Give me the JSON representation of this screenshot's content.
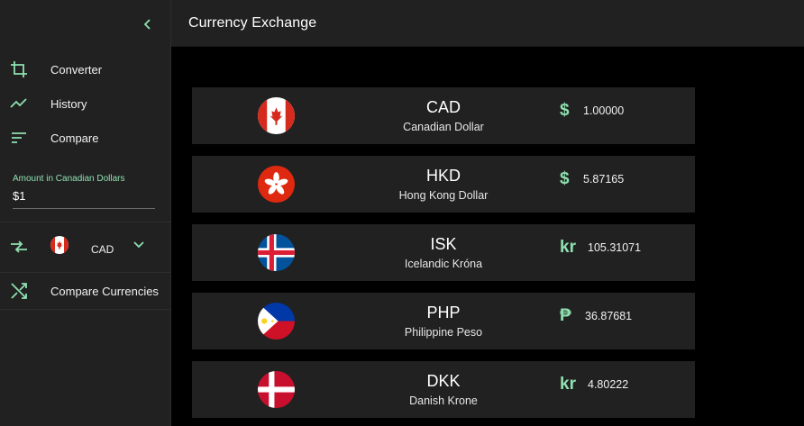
{
  "app": {
    "title": "Currency Exchange"
  },
  "sidebar": {
    "nav": [
      {
        "label": "Converter",
        "icon": "crop-icon"
      },
      {
        "label": "History",
        "icon": "trend-icon"
      },
      {
        "label": "Compare",
        "icon": "sort-icon"
      }
    ],
    "amount_label": "Amount in Canadian Dollars",
    "amount_value": "$1",
    "base_currency": {
      "code": "CAD",
      "flag": "canada-flag"
    },
    "compare_label": "Compare Currencies"
  },
  "rates": [
    {
      "code": "CAD",
      "name": "Canadian Dollar",
      "symbol": "$",
      "value": "1.00000",
      "flag": "canada-flag"
    },
    {
      "code": "HKD",
      "name": "Hong Kong Dollar",
      "symbol": "$",
      "value": "5.87165",
      "flag": "hong-kong-flag"
    },
    {
      "code": "ISK",
      "name": "Icelandic Króna",
      "symbol": "kr",
      "value": "105.31071",
      "flag": "iceland-flag"
    },
    {
      "code": "PHP",
      "name": "Philippine Peso",
      "symbol": "₱",
      "value": "36.87681",
      "flag": "philippines-flag"
    },
    {
      "code": "DKK",
      "name": "Danish Krone",
      "symbol": "kr",
      "value": "4.80222",
      "flag": "denmark-flag"
    }
  ],
  "colors": {
    "accent": "#8fe0b0",
    "surface": "#212121",
    "background": "#000000"
  }
}
